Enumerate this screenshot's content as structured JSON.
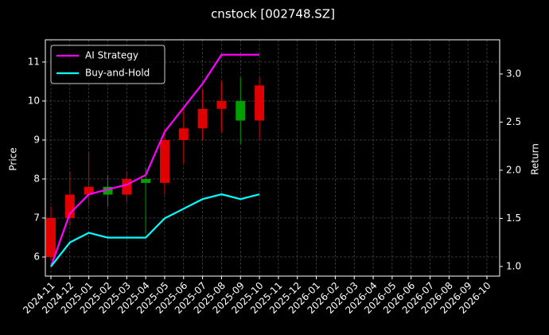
{
  "chart_data": {
    "type": "candlestick",
    "title": "cnstock [002748.SZ]",
    "ylabel": "Price",
    "y2label": "Return",
    "x": [
      "2024-11",
      "2024-12",
      "2025-01",
      "2025-02",
      "2025-03",
      "2025-04",
      "2025-05",
      "2025-06",
      "2025-07",
      "2025-08",
      "2025-09",
      "2025-10"
    ],
    "open": [
      6.0,
      7.0,
      7.6,
      7.8,
      7.6,
      8.0,
      7.9,
      9.0,
      9.3,
      9.8,
      10.0,
      9.5
    ],
    "high": [
      7.3,
      8.2,
      8.7,
      8.1,
      8.2,
      8.3,
      9.3,
      9.8,
      10.3,
      10.5,
      10.6,
      10.6
    ],
    "low": [
      5.9,
      6.8,
      7.3,
      7.3,
      7.4,
      6.6,
      7.6,
      8.4,
      9.0,
      9.2,
      8.9,
      9.0
    ],
    "close": [
      7.0,
      7.6,
      7.8,
      7.6,
      8.0,
      7.9,
      9.0,
      9.3,
      9.8,
      10.0,
      9.5,
      10.4
    ],
    "up_color": "#e00000",
    "down_color": "#00a000",
    "series": [
      {
        "name": "AI Strategy",
        "color": "#ff00ff",
        "axis": "y2",
        "values": [
          1.0,
          1.55,
          1.75,
          1.8,
          1.85,
          1.95,
          2.4,
          2.65,
          2.9,
          3.2,
          3.2,
          3.2
        ]
      },
      {
        "name": "Buy-and-Hold",
        "color": "#00ffff",
        "axis": "y2",
        "values": [
          1.0,
          1.25,
          1.35,
          1.3,
          1.3,
          1.3,
          1.5,
          1.6,
          1.7,
          1.75,
          1.7,
          1.75
        ]
      }
    ],
    "xlim": [
      "2024-11",
      "2026-10"
    ],
    "xticks": [
      "2024-11",
      "2024-12",
      "2025-01",
      "2025-02",
      "2025-03",
      "2025-04",
      "2025-05",
      "2025-06",
      "2025-07",
      "2025-08",
      "2025-09",
      "2025-10",
      "2025-11",
      "2025-12",
      "2026-01",
      "2026-02",
      "2026-03",
      "2026-04",
      "2026-05",
      "2026-06",
      "2026-07",
      "2026-08",
      "2026-09",
      "2026-10"
    ],
    "ylim": [
      5.51,
      11.57
    ],
    "yticks": [
      6,
      7,
      8,
      9,
      10,
      11
    ],
    "y2lim": [
      0.9,
      3.355
    ],
    "y2ticks": [
      {
        "value": 1.0,
        "label": "1.0"
      },
      {
        "value": 1.5,
        "label": "1.5"
      },
      {
        "value": 2.0,
        "label": "2.0"
      },
      {
        "value": 2.5,
        "label": "2.5"
      },
      {
        "value": 3.0,
        "label": "3.0"
      }
    ],
    "grid": true,
    "legend": "upper left"
  }
}
